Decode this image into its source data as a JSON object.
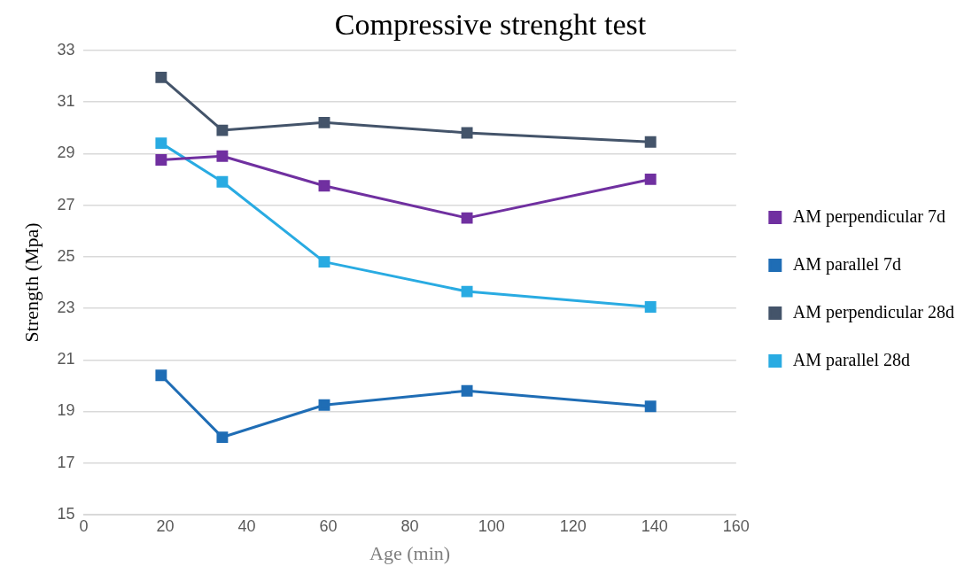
{
  "chart_data": {
    "type": "line",
    "title": "Compressive strenght test",
    "xlabel": "Age (min)",
    "ylabel": "Strength (Mpa)",
    "x": [
      19,
      34,
      59,
      94,
      139
    ],
    "series": [
      {
        "name": "AM perpendicular 7d",
        "color": "#7030a0",
        "values": [
          28.75,
          28.9,
          27.75,
          26.5,
          28.0
        ]
      },
      {
        "name": "AM parallel 7d",
        "color": "#1f6db5",
        "values": [
          20.4,
          18.0,
          19.25,
          19.8,
          19.2
        ]
      },
      {
        "name": "AM perpendicular 28d",
        "color": "#44546a",
        "values": [
          31.95,
          29.9,
          30.2,
          29.8,
          29.45
        ]
      },
      {
        "name": "AM parallel 28d",
        "color": "#29abe2",
        "values": [
          29.4,
          27.9,
          24.8,
          23.65,
          23.05
        ]
      }
    ],
    "xlim": [
      0,
      160
    ],
    "xticks": [
      0,
      20,
      40,
      60,
      80,
      100,
      120,
      140,
      160
    ],
    "ylim": [
      15,
      33
    ],
    "yticks": [
      15,
      17,
      19,
      21,
      23,
      25,
      27,
      29,
      31,
      33
    ],
    "grid": "y",
    "legend": "right",
    "marker": "square",
    "line_style": "solid"
  }
}
